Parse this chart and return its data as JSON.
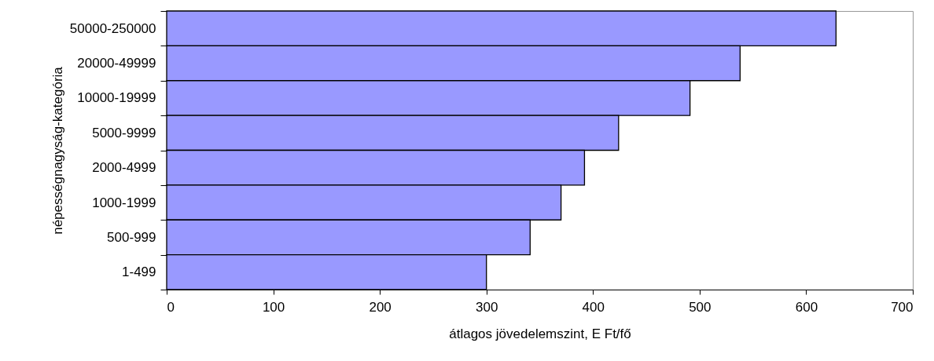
{
  "chart_data": {
    "type": "bar",
    "orientation": "horizontal",
    "xlabel": "átlagos jövedelemszint, E Ft/fő",
    "ylabel": "népességnagyság-kategória",
    "categories": [
      "50000-250000",
      "20000-49999",
      "10000-19999",
      "5000-9999",
      "2000-4999",
      "1000-1999",
      "500-999",
      "1-499"
    ],
    "values": [
      628,
      538,
      491,
      424,
      392,
      370,
      341,
      300
    ],
    "color": "#9999ff",
    "xlim": [
      0,
      700
    ],
    "xticks": [
      0,
      100,
      200,
      300,
      400,
      500,
      600,
      700
    ],
    "grid": false
  }
}
